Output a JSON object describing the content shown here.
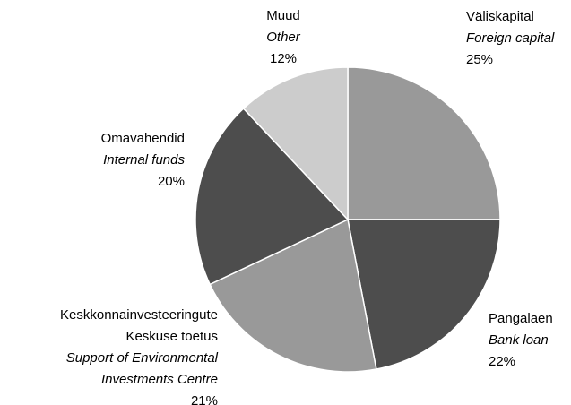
{
  "chart_data": {
    "type": "pie",
    "categories": [
      [
        "Väliskapital"
      ],
      [
        "Pangalaen"
      ],
      [
        "Keskkonnainvesteeringute",
        "Keskuse toetus"
      ],
      [
        "Omavahendid"
      ],
      [
        "Muud"
      ]
    ],
    "categories_en": [
      [
        "Foreign capital"
      ],
      [
        "Bank loan"
      ],
      [
        "Support of Environmental",
        "Investments Centre"
      ],
      [
        "Internal funds"
      ],
      [
        "Other"
      ]
    ],
    "values": [
      25,
      22,
      21,
      20,
      12
    ],
    "value_labels": [
      "25%",
      "22%",
      "21%",
      "20%",
      "12%"
    ],
    "colors": [
      "#999999",
      "#4d4d4d",
      "#999999",
      "#4d4d4d",
      "#cccccc"
    ]
  }
}
